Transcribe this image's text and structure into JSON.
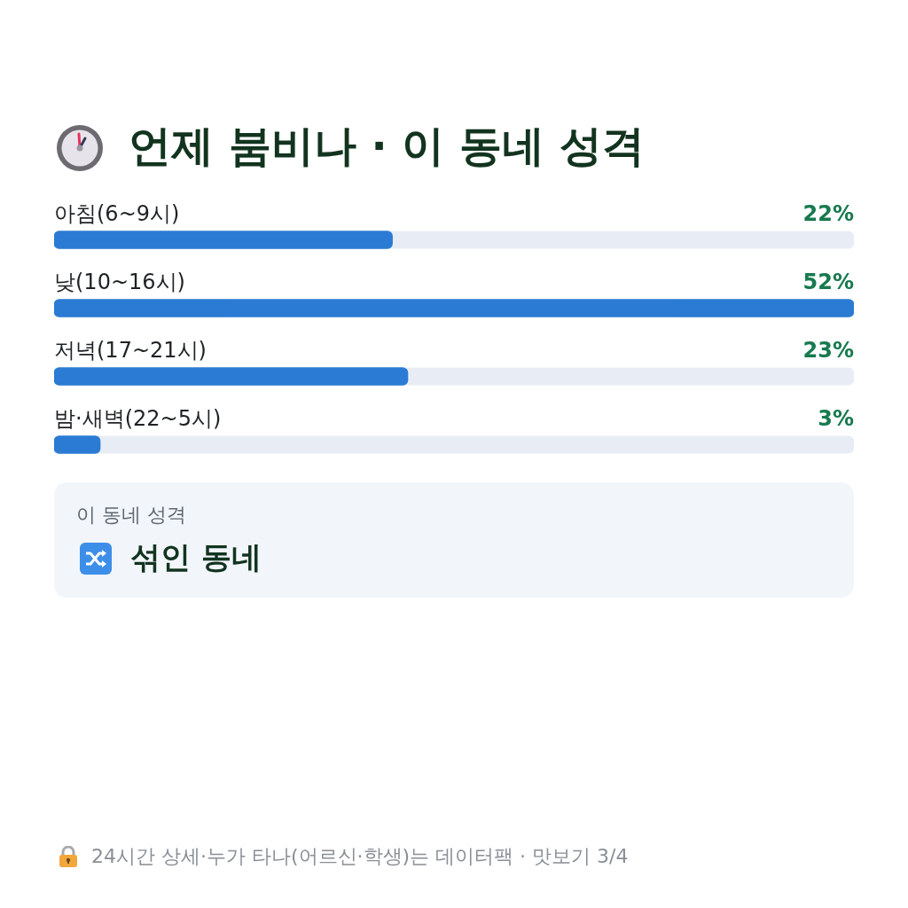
{
  "chart_data": [
    {
      "type": "bar",
      "orientation": "horizontal",
      "title": "언제 붐비나 · 이 동네 성격",
      "categories": [
        "아침(6~9시)",
        "낮(10~16시)",
        "저녁(17~21시)",
        "밤·새벽(22~5시)"
      ],
      "values": [
        22,
        52,
        23,
        3
      ],
      "value_labels": [
        "22%",
        "52%",
        "23%",
        "3%"
      ],
      "color": "#2b7bd4",
      "tick_labels": "y",
      "annotations": [
        "24시간 상세·누가 타나(어르신·학생)는 데이터팩 · 맛보기 3/4"
      ]
    },
    {
      "type": "other",
      "title": "이 동네 성격",
      "annotations": [
        "섞인 동네"
      ]
    }
  ]
}
